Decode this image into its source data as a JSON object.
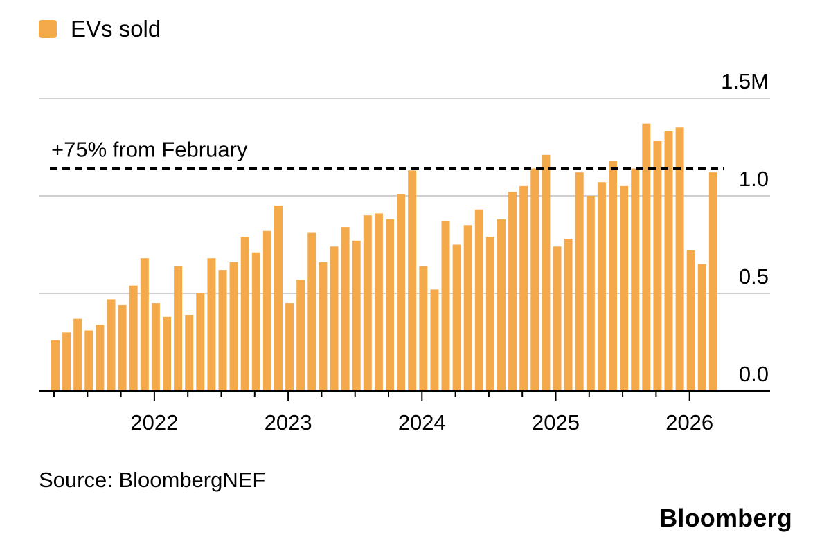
{
  "legend": {
    "label": "EVs sold",
    "color": "#f4a94b"
  },
  "source": "Source: BloombergNEF",
  "brand": "Bloomberg",
  "chart_data": {
    "type": "bar",
    "unit_label": "M",
    "y_ticks": [
      {
        "value": 0.0,
        "label": "0.0"
      },
      {
        "value": 0.5,
        "label": "0.5"
      },
      {
        "value": 1.0,
        "label": "1.0"
      },
      {
        "value": 1.5,
        "label": "1.5M"
      }
    ],
    "ylim": [
      0,
      1.5
    ],
    "x_year_ticks": [
      {
        "label": "2022",
        "index": 9
      },
      {
        "label": "2023",
        "index": 21
      },
      {
        "label": "2024",
        "index": 33
      },
      {
        "label": "2025",
        "index": 45
      },
      {
        "label": "2026",
        "index": 57
      }
    ],
    "grid": true,
    "bar_color": "#f4a94b",
    "series": [
      {
        "values": [
          0.26,
          0.3,
          0.37,
          0.31,
          0.34,
          0.47,
          0.44,
          0.54,
          0.68,
          0.45,
          0.38,
          0.64,
          0.39,
          0.5,
          0.68,
          0.62,
          0.66,
          0.79,
          0.71,
          0.82,
          0.95,
          0.45,
          0.57,
          0.81,
          0.66,
          0.74,
          0.84,
          0.77,
          0.9,
          0.91,
          0.88,
          1.01,
          1.13,
          0.64,
          0.52,
          0.87,
          0.75,
          0.85,
          0.93,
          0.79,
          0.88,
          1.02,
          1.05,
          1.14,
          1.21,
          0.74,
          0.78,
          1.12,
          1.0,
          1.07,
          1.18,
          1.05,
          1.14,
          1.37,
          1.28,
          1.33,
          1.35,
          0.72,
          0.65,
          1.12
        ]
      }
    ],
    "reference_line": {
      "value": 1.14,
      "label": "+75% from February"
    }
  }
}
